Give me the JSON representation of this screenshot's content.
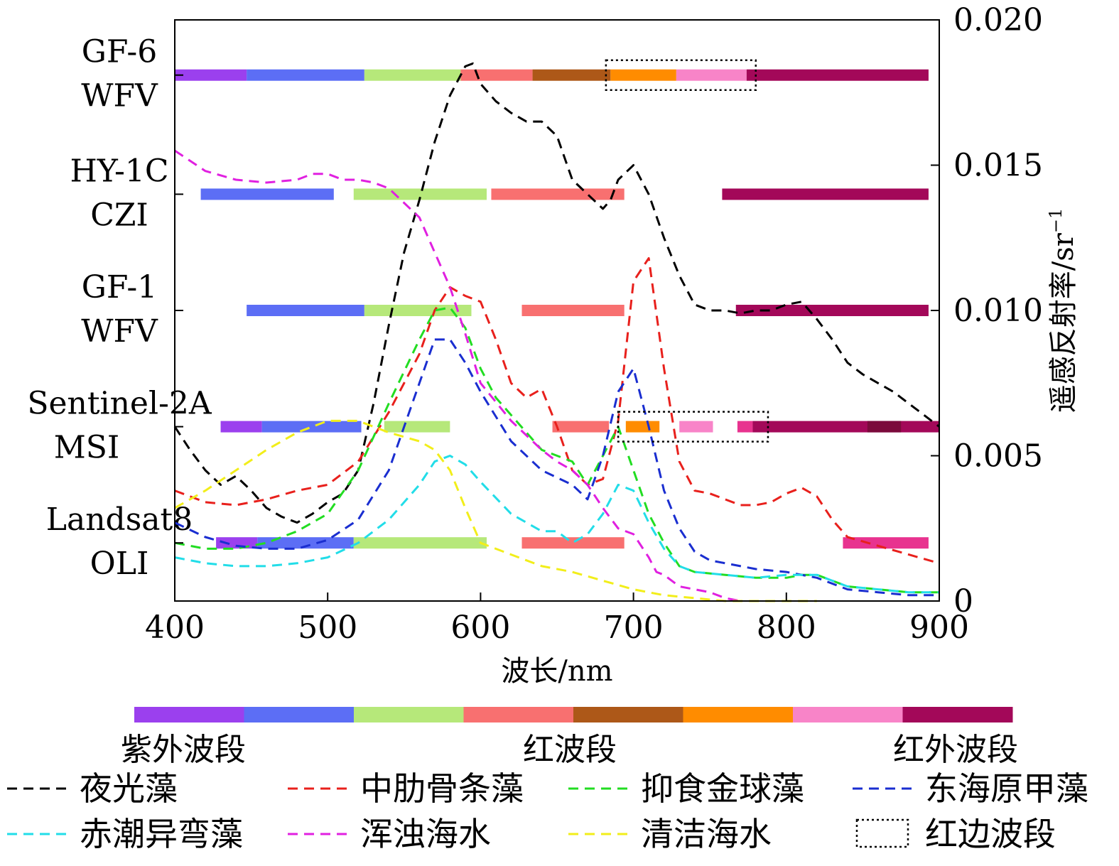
{
  "chart_data": {
    "type": "line",
    "xlabel": "波长/nm",
    "ylabel": "遥感反射率/sr",
    "ylabel_superscript": "−1",
    "xlim": [
      400,
      900
    ],
    "ylim": [
      0,
      0.02
    ],
    "x_ticks": [
      "400",
      "500",
      "600",
      "700",
      "800",
      "900"
    ],
    "y_ticks": [
      "0",
      "0.005",
      "0.010",
      "0.015",
      "0.020"
    ],
    "y_tick_values": [
      0,
      0.005,
      0.01,
      0.015,
      0.02
    ],
    "grid": false,
    "series": [
      {
        "name": "夜光藻",
        "color": "#000000",
        "x": [
          400,
          410,
          420,
          430,
          440,
          450,
          460,
          470,
          480,
          490,
          500,
          510,
          520,
          530,
          540,
          550,
          560,
          570,
          580,
          590,
          595,
          600,
          610,
          620,
          630,
          640,
          650,
          660,
          670,
          680,
          685,
          690,
          700,
          710,
          720,
          730,
          740,
          750,
          760,
          770,
          780,
          790,
          800,
          810,
          820,
          830,
          840,
          850,
          860,
          870,
          880,
          890,
          900
        ],
        "y": [
          0.006,
          0.0052,
          0.0045,
          0.004,
          0.0043,
          0.0038,
          0.0032,
          0.0029,
          0.0027,
          0.003,
          0.0034,
          0.0037,
          0.0045,
          0.0068,
          0.0095,
          0.012,
          0.0138,
          0.0158,
          0.0174,
          0.0184,
          0.0185,
          0.0178,
          0.0172,
          0.0168,
          0.0165,
          0.0165,
          0.016,
          0.0145,
          0.014,
          0.0135,
          0.0138,
          0.0145,
          0.015,
          0.014,
          0.0125,
          0.0112,
          0.0102,
          0.01,
          0.01,
          0.0099,
          0.01,
          0.01,
          0.0102,
          0.0103,
          0.0097,
          0.009,
          0.0082,
          0.0078,
          0.0075,
          0.0072,
          0.0068,
          0.0064,
          0.006
        ]
      },
      {
        "name": "中肋骨条藻",
        "color": "#e8201c",
        "x": [
          400,
          420,
          440,
          460,
          480,
          500,
          520,
          540,
          560,
          570,
          580,
          590,
          600,
          610,
          620,
          630,
          640,
          650,
          660,
          670,
          680,
          690,
          700,
          710,
          720,
          730,
          740,
          750,
          760,
          770,
          780,
          790,
          800,
          810,
          820,
          830,
          840,
          860,
          880,
          900
        ],
        "y": [
          0.0038,
          0.0034,
          0.0033,
          0.0035,
          0.0038,
          0.004,
          0.0048,
          0.0065,
          0.0085,
          0.01,
          0.0108,
          0.0105,
          0.0103,
          0.009,
          0.0075,
          0.007,
          0.0073,
          0.006,
          0.0045,
          0.004,
          0.0042,
          0.0062,
          0.011,
          0.0118,
          0.008,
          0.0048,
          0.0038,
          0.0037,
          0.0035,
          0.0033,
          0.0033,
          0.0034,
          0.0037,
          0.0039,
          0.0036,
          0.0028,
          0.0022,
          0.0019,
          0.0016,
          0.0013
        ]
      },
      {
        "name": "抑食金球藻",
        "color": "#22dd22",
        "x": [
          400,
          420,
          440,
          460,
          480,
          500,
          520,
          540,
          560,
          570,
          580,
          590,
          600,
          610,
          620,
          640,
          660,
          670,
          680,
          690,
          700,
          710,
          720,
          730,
          740,
          760,
          780,
          800,
          810,
          820,
          840,
          860,
          880,
          900
        ],
        "y": [
          0.002,
          0.0018,
          0.0018,
          0.002,
          0.0024,
          0.003,
          0.0045,
          0.0068,
          0.009,
          0.01,
          0.0101,
          0.0094,
          0.008,
          0.007,
          0.0064,
          0.0052,
          0.0048,
          0.004,
          0.005,
          0.006,
          0.0045,
          0.003,
          0.002,
          0.0012,
          0.001,
          0.0009,
          0.0008,
          0.0008,
          0.0009,
          0.0009,
          0.0005,
          0.0004,
          0.0003,
          0.0003
        ]
      },
      {
        "name": "东海原甲藻",
        "color": "#1a2ed0",
        "x": [
          400,
          420,
          440,
          460,
          480,
          500,
          520,
          540,
          560,
          570,
          580,
          590,
          600,
          620,
          640,
          660,
          670,
          680,
          690,
          700,
          710,
          720,
          730,
          740,
          750,
          760,
          770,
          780,
          800,
          820,
          840,
          860,
          880,
          900
        ],
        "y": [
          0.0027,
          0.0022,
          0.0019,
          0.0018,
          0.0018,
          0.0021,
          0.0028,
          0.0045,
          0.0075,
          0.009,
          0.009,
          0.0082,
          0.0072,
          0.0055,
          0.0045,
          0.004,
          0.0035,
          0.005,
          0.0072,
          0.008,
          0.006,
          0.0038,
          0.0025,
          0.0017,
          0.0014,
          0.0013,
          0.0012,
          0.0011,
          0.001,
          0.0008,
          0.0004,
          0.0003,
          0.0002,
          0.0002
        ]
      },
      {
        "name": "赤潮异弯藻",
        "color": "#22dde8",
        "x": [
          400,
          420,
          440,
          460,
          480,
          500,
          520,
          540,
          560,
          570,
          580,
          590,
          600,
          620,
          640,
          650,
          660,
          670,
          680,
          690,
          700,
          710,
          720,
          730,
          740,
          760,
          780,
          800,
          810,
          820,
          840,
          860,
          880,
          900
        ],
        "y": [
          0.0015,
          0.0013,
          0.0012,
          0.0012,
          0.0013,
          0.0015,
          0.002,
          0.0028,
          0.004,
          0.0048,
          0.005,
          0.0047,
          0.0041,
          0.003,
          0.0024,
          0.0024,
          0.002,
          0.0023,
          0.003,
          0.004,
          0.0038,
          0.0027,
          0.0018,
          0.0012,
          0.001,
          0.0009,
          0.0008,
          0.0009,
          0.0009,
          0.0009,
          0.0005,
          0.0004,
          0.0003,
          0.0003
        ]
      },
      {
        "name": "浑浊海水",
        "color": "#e020e0",
        "x": [
          400,
          420,
          440,
          460,
          480,
          490,
          500,
          510,
          520,
          530,
          540,
          560,
          570,
          580,
          590,
          600,
          620,
          640,
          650,
          660,
          670,
          680,
          690,
          700,
          710,
          715,
          720,
          730,
          740,
          750,
          760,
          770
        ],
        "y": [
          0.0155,
          0.0148,
          0.0145,
          0.0144,
          0.0145,
          0.0147,
          0.0147,
          0.0145,
          0.0145,
          0.0144,
          0.0142,
          0.0132,
          0.012,
          0.0108,
          0.0092,
          0.0075,
          0.0062,
          0.0052,
          0.0048,
          0.0045,
          0.004,
          0.0032,
          0.0025,
          0.0023,
          0.0015,
          0.001,
          0.0009,
          0.0005,
          0.0004,
          0.0003,
          0.0001,
          0.0
        ]
      },
      {
        "name": "清洁海水",
        "color": "#f2ee1a",
        "x": [
          400,
          420,
          440,
          460,
          480,
          500,
          520,
          540,
          560,
          570,
          580,
          590,
          600,
          620,
          640,
          660,
          680,
          700,
          720,
          740,
          760,
          780,
          800,
          820
        ],
        "y": [
          0.0032,
          0.0038,
          0.0045,
          0.0052,
          0.0058,
          0.0062,
          0.0062,
          0.0058,
          0.0055,
          0.0052,
          0.0045,
          0.0032,
          0.002,
          0.0016,
          0.0012,
          0.001,
          0.0007,
          0.0004,
          0.0002,
          0.0001,
          0.0,
          0.0,
          0.0,
          0.0
        ]
      }
    ],
    "sensors": [
      {
        "name": "GF-6",
        "name2": "WFV",
        "y": 0.0181,
        "red_edge": [
          682,
          780
        ],
        "bands": [
          [
            400,
            447,
            "#9b40ee"
          ],
          [
            447,
            524,
            "#5c6ef5"
          ],
          [
            524,
            587,
            "#b6e87a"
          ],
          [
            587,
            634,
            "#f87070"
          ],
          [
            634,
            685,
            "#ad5818"
          ],
          [
            685,
            728,
            "#ff8c00"
          ],
          [
            728,
            774,
            "#f884c8"
          ],
          [
            774,
            893,
            "#a30859"
          ]
        ]
      },
      {
        "name": "HY-1C",
        "name2": "CZI",
        "y": 0.014,
        "bands": [
          [
            417,
            504,
            "#5c6ef5"
          ],
          [
            517,
            604,
            "#b6e87a"
          ],
          [
            607,
            694,
            "#f87070"
          ],
          [
            758,
            893,
            "#a30859"
          ]
        ]
      },
      {
        "name": "GF-1",
        "name2": "WFV",
        "y": 0.01,
        "bands": [
          [
            447,
            524,
            "#5c6ef5"
          ],
          [
            524,
            594,
            "#b6e87a"
          ],
          [
            627,
            694,
            "#f87070"
          ],
          [
            767,
            893,
            "#a30859"
          ]
        ]
      },
      {
        "name": "Sentinel-2A",
        "name2": "MSI",
        "y": 0.006,
        "red_edge": [
          690,
          788
        ],
        "bands": [
          [
            430,
            457,
            "#9b40ee"
          ],
          [
            457,
            522,
            "#5c6ef5"
          ],
          [
            537,
            580,
            "#b6e87a"
          ],
          [
            647,
            684,
            "#f87070"
          ],
          [
            695,
            717,
            "#ff8c00"
          ],
          [
            730,
            752,
            "#f884c8"
          ],
          [
            768,
            778,
            "#e8338f"
          ],
          [
            778,
            900,
            "#a30859"
          ],
          [
            853,
            875,
            "#7b0a3b"
          ]
        ]
      },
      {
        "name": "Landsat8",
        "name2": "OLI",
        "y": 0.002,
        "bands": [
          [
            427,
            454,
            "#9b40ee"
          ],
          [
            454,
            517,
            "#5c6ef5"
          ],
          [
            517,
            604,
            "#b6e87a"
          ],
          [
            627,
            694,
            "#f87070"
          ],
          [
            837,
            893,
            "#e8338f"
          ]
        ]
      }
    ],
    "color_bar": [
      "#9b40ee",
      "#5c6ef5",
      "#b6e87a",
      "#f87070",
      "#ad5818",
      "#ff8c00",
      "#f884c8",
      "#a30859"
    ],
    "color_bar_labels": [
      "紫外波段",
      "红波段",
      "红外波段"
    ],
    "legend": [
      "夜光藻",
      "中肋骨条藻",
      "抑食金球藻",
      "东海原甲藻",
      "赤潮异弯藻",
      "浑浊海水",
      "清洁海水",
      "红边波段"
    ]
  }
}
